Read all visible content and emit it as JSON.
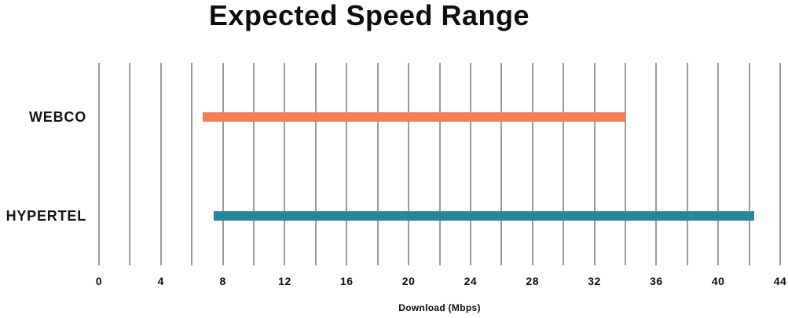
{
  "chart_data": {
    "type": "bar",
    "variant": "horizontal-range-bars",
    "title": "Expected Speed Range",
    "xlabel": "Download (Mbps)",
    "categories": [
      "WEBCO",
      "HYPERTEL"
    ],
    "series": [
      {
        "name": "WEBCO",
        "start": 6.7,
        "end": 34.0,
        "color": "#f07e57"
      },
      {
        "name": "HYPERTEL",
        "start": 7.4,
        "end": 42.3,
        "color": "#26879b"
      }
    ],
    "xlim": [
      0,
      44
    ],
    "x_ticks": [
      0,
      4,
      8,
      12,
      16,
      20,
      24,
      28,
      32,
      36,
      40,
      44
    ],
    "gridline_step": 2,
    "grid": "vertical",
    "legend": "none"
  },
  "colors": {
    "gridline": "#9e9a94",
    "text": "#0d0d0d",
    "background": "#ffffff"
  }
}
